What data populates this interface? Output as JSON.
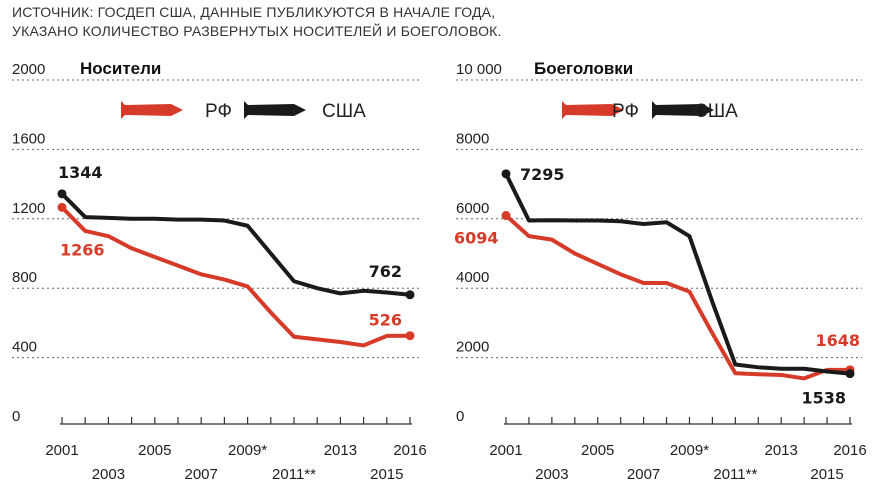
{
  "source": {
    "line1": "ИСТОЧНИК: ГОСДЕП США, ДАННЫЕ ПУБЛИКУЮТСЯ В НАЧАЛЕ ГОДА,",
    "line2": "УКАЗАНО КОЛИЧЕСТВО РАЗВЕРНУТЫХ НОСИТЕЛЕЙ И БОЕГОЛОВОК."
  },
  "colors": {
    "rf": "#d63b2a",
    "usa": "#1a1a1a"
  },
  "legend": {
    "rf": "РФ",
    "usa": "США"
  },
  "x_tick_labels": {
    "upper": [
      {
        "x": 2001,
        "label": "2001"
      },
      {
        "x": 2005,
        "label": "2005"
      },
      {
        "x": 2009,
        "label": "2009*"
      },
      {
        "x": 2013,
        "label": "2013"
      },
      {
        "x": 2016,
        "label": "2016"
      }
    ],
    "lower": [
      {
        "x": 2003,
        "label": "2003"
      },
      {
        "x": 2007,
        "label": "2007"
      },
      {
        "x": 2011,
        "label": "2011**"
      },
      {
        "x": 2015,
        "label": "2015"
      }
    ]
  },
  "chart_data": [
    {
      "type": "line",
      "title": "Носители",
      "xlim": [
        2001,
        2016
      ],
      "ylim": [
        0,
        2000
      ],
      "yticks": [
        {
          "value": 0,
          "label": "0"
        },
        {
          "value": 400,
          "label": "400"
        },
        {
          "value": 800,
          "label": "800"
        },
        {
          "value": 1200,
          "label": "1200"
        },
        {
          "value": 1600,
          "label": "1600"
        },
        {
          "value": 2000,
          "label": "2000"
        }
      ],
      "grid": true,
      "legend_position": "top",
      "series": [
        {
          "name": "РФ",
          "key": "rf",
          "x": [
            2001,
            2002,
            2003,
            2004,
            2005,
            2006,
            2007,
            2008,
            2009,
            2010,
            2011,
            2012,
            2013,
            2014,
            2015,
            2016
          ],
          "y": [
            1266,
            1130,
            1100,
            1030,
            980,
            930,
            880,
            850,
            810,
            660,
            520,
            505,
            490,
            470,
            525,
            526
          ],
          "start_label": "1266",
          "end_label": "526"
        },
        {
          "name": "США",
          "key": "usa",
          "x": [
            2001,
            2002,
            2003,
            2004,
            2005,
            2006,
            2007,
            2008,
            2009,
            2010,
            2011,
            2012,
            2013,
            2014,
            2015,
            2016
          ],
          "y": [
            1344,
            1210,
            1205,
            1200,
            1200,
            1195,
            1195,
            1190,
            1160,
            1000,
            840,
            800,
            770,
            785,
            775,
            762
          ],
          "start_label": "1344",
          "end_label": "762"
        }
      ]
    },
    {
      "type": "line",
      "title": "Боеголовки",
      "xlim": [
        2001,
        2016
      ],
      "ylim": [
        0,
        10000
      ],
      "yticks": [
        {
          "value": 0,
          "label": "0"
        },
        {
          "value": 2000,
          "label": "2000"
        },
        {
          "value": 4000,
          "label": "4000"
        },
        {
          "value": 6000,
          "label": "6000"
        },
        {
          "value": 8000,
          "label": "8000"
        },
        {
          "value": 10000,
          "label": "10 000"
        }
      ],
      "grid": true,
      "legend_position": "top",
      "series": [
        {
          "name": "РФ",
          "key": "rf",
          "x": [
            2001,
            2002,
            2003,
            2004,
            2005,
            2006,
            2007,
            2008,
            2009,
            2010,
            2011,
            2012,
            2013,
            2014,
            2015,
            2016
          ],
          "y": [
            6094,
            5500,
            5400,
            5000,
            4700,
            4400,
            4150,
            4150,
            3900,
            2700,
            1550,
            1520,
            1500,
            1400,
            1648,
            1648
          ],
          "start_label": "6094",
          "end_label": "1648"
        },
        {
          "name": "США",
          "key": "usa",
          "x": [
            2001,
            2002,
            2003,
            2004,
            2005,
            2006,
            2007,
            2008,
            2009,
            2010,
            2011,
            2012,
            2013,
            2014,
            2015,
            2016
          ],
          "y": [
            7295,
            5950,
            5960,
            5950,
            5950,
            5930,
            5850,
            5900,
            5500,
            3600,
            1800,
            1720,
            1680,
            1680,
            1600,
            1538
          ],
          "start_label": "7295",
          "end_label": "1538"
        }
      ]
    }
  ]
}
